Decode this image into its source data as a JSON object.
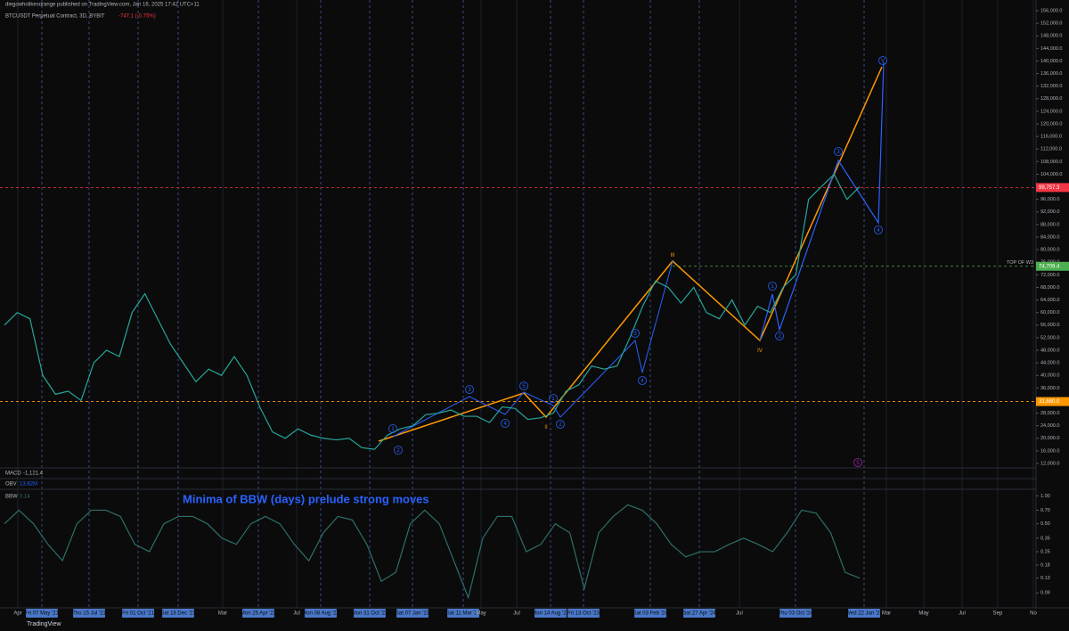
{
  "header": {
    "publisher": "diegowholikesorange published on TradingView.com, Jan 16, 2025 17:42 UTC+11",
    "symbol": "BTCUSDT Perpetual Contract, 3D, BYBIT",
    "change": "-747.1 (-0.75%)"
  },
  "indicators": {
    "macd_name": "MACD",
    "macd_value": "-1,121.4",
    "obv_name": "OBV",
    "obv_value": "13.62M",
    "bbw_name": "BBW",
    "bbw_value": "0.14",
    "note": "Minima of BBW (days) prelude strong moves"
  },
  "footer": "TradingView",
  "time_axis": [
    "Apr",
    "Fri 07 May '21",
    "Thu 15 Jul '21",
    "Fri 01 Oct '21",
    "Sat 18 Dec '21",
    "Mar",
    "Mon 25 Apr '22",
    "Jul",
    "Mon 08 Aug '22",
    "Mon 31 Oct '22",
    "Sat 07 Jan '23",
    "Sat 11 Mar '23",
    "May",
    "Jul",
    "Mon 14 Aug '23",
    "Fri 13 Oct '23",
    "Sat 03 Feb '24",
    "Sat 27 Apr '24",
    "Jul",
    "Thu 03 Oct '24",
    "Wed 22 Jan '25",
    "Mar",
    "May",
    "Jul",
    "Sep",
    "No"
  ],
  "annotations": [
    "1",
    "2",
    "3",
    "4",
    "5",
    "II",
    "1",
    "2",
    "3",
    "4",
    "III",
    "1",
    "2",
    "IV",
    "3",
    "4",
    "V",
    "5"
  ],
  "chart_data": [
    {
      "type": "line",
      "name": "BTCUSDT",
      "color": "#26a69a",
      "values": [
        56000,
        60000,
        58000,
        40000,
        34000,
        35000,
        32000,
        44000,
        48000,
        46000,
        60000,
        66000,
        58000,
        50000,
        44000,
        38000,
        42000,
        40000,
        46000,
        40000,
        30000,
        22000,
        20000,
        23000,
        21000,
        20000,
        19500,
        20000,
        17000,
        16500,
        21000,
        23000,
        24000,
        27500,
        28000,
        29000,
        27000,
        27000,
        25000,
        30000,
        29500,
        26000,
        26500,
        28000,
        35000,
        37000,
        43000,
        42000,
        43000,
        52000,
        62000,
        70000,
        68000,
        63000,
        68000,
        60000,
        58000,
        64000,
        56000,
        62000,
        60000,
        68000,
        72000,
        96000,
        100000,
        104000,
        96000,
        100000
      ],
      "ylim": [
        12000,
        156000
      ],
      "yticks": [
        {
          "value": 12000,
          "label": "12,000.0"
        },
        {
          "value": 16000,
          "label": "16,000.0"
        },
        {
          "value": 20000,
          "label": "20,000.0"
        },
        {
          "value": 24000,
          "label": "24,000.0"
        },
        {
          "value": 28000,
          "label": "28,000.0"
        },
        {
          "value": 32000,
          "label": "32,000.0"
        },
        {
          "value": 36000,
          "label": "36,000.0"
        },
        {
          "value": 40000,
          "label": "40,000.0"
        },
        {
          "value": 44000,
          "label": "44,000.0"
        },
        {
          "value": 48000,
          "label": "48,000.0"
        },
        {
          "value": 52000,
          "label": "52,000.0"
        },
        {
          "value": 56000,
          "label": "56,000.0"
        },
        {
          "value": 60000,
          "label": "60,000.0"
        },
        {
          "value": 64000,
          "label": "64,000.0"
        },
        {
          "value": 68000,
          "label": "68,000.0"
        },
        {
          "value": 72000,
          "label": "72,000.0"
        },
        {
          "value": 76000,
          "label": "76,000.0"
        },
        {
          "value": 80000,
          "label": "80,000.0"
        },
        {
          "value": 84000,
          "label": "84,000.0"
        },
        {
          "value": 88000,
          "label": "88,000.0"
        },
        {
          "value": 92000,
          "label": "92,000.0"
        },
        {
          "value": 96000,
          "label": "96,000.0"
        },
        {
          "value": 100000,
          "label": "100,000.0"
        },
        {
          "value": 104000,
          "label": "104,000.0"
        },
        {
          "value": 108000,
          "label": "108,000.0"
        },
        {
          "value": 112000,
          "label": "112,000.0"
        },
        {
          "value": 116000,
          "label": "116,000.0"
        },
        {
          "value": 120000,
          "label": "120,000.0"
        },
        {
          "value": 124000,
          "label": "124,000.0"
        },
        {
          "value": 128000,
          "label": "128,000.0"
        },
        {
          "value": 132000,
          "label": "132,000.0"
        },
        {
          "value": 136000,
          "label": "136,000.0"
        },
        {
          "value": 140000,
          "label": "140,000.0"
        },
        {
          "value": 144000,
          "label": "144,000.0"
        },
        {
          "value": 148000,
          "label": "148,000.0"
        },
        {
          "value": 152000,
          "label": "152,000.0"
        },
        {
          "value": 156000,
          "label": "156,000.0"
        }
      ],
      "price_lines": [
        {
          "value": 99757.3,
          "label": "99,757.3",
          "color": "#f23645"
        },
        {
          "value": 74709.4,
          "label": "74,709.4",
          "color": "#4caf50",
          "text": "TOP OF W3"
        },
        {
          "value": 31680,
          "label": "31,680.0",
          "color": "#ff9800"
        }
      ]
    },
    {
      "type": "line",
      "name": "BBW",
      "color": "#2e6f6a",
      "log": true,
      "values": [
        0.5,
        0.7,
        0.5,
        0.3,
        0.2,
        0.5,
        0.7,
        0.7,
        0.6,
        0.3,
        0.25,
        0.5,
        0.6,
        0.6,
        0.5,
        0.35,
        0.3,
        0.5,
        0.6,
        0.5,
        0.3,
        0.2,
        0.4,
        0.6,
        0.55,
        0.3,
        0.12,
        0.15,
        0.5,
        0.7,
        0.5,
        0.2,
        0.08,
        0.35,
        0.6,
        0.6,
        0.25,
        0.3,
        0.5,
        0.4,
        0.1,
        0.4,
        0.6,
        0.8,
        0.7,
        0.5,
        0.3,
        0.22,
        0.25,
        0.25,
        0.3,
        0.35,
        0.3,
        0.25,
        0.4,
        0.7,
        0.65,
        0.4,
        0.15,
        0.13
      ],
      "ylim": [
        0.065,
        1.1
      ],
      "yticks": [
        {
          "value": 1,
          "label": "1.00"
        },
        {
          "value": 0.7,
          "label": "0.70"
        },
        {
          "value": 0.5,
          "label": "0.50"
        },
        0.35,
        0.25,
        0.18,
        0.13,
        0.09
      ]
    }
  ]
}
